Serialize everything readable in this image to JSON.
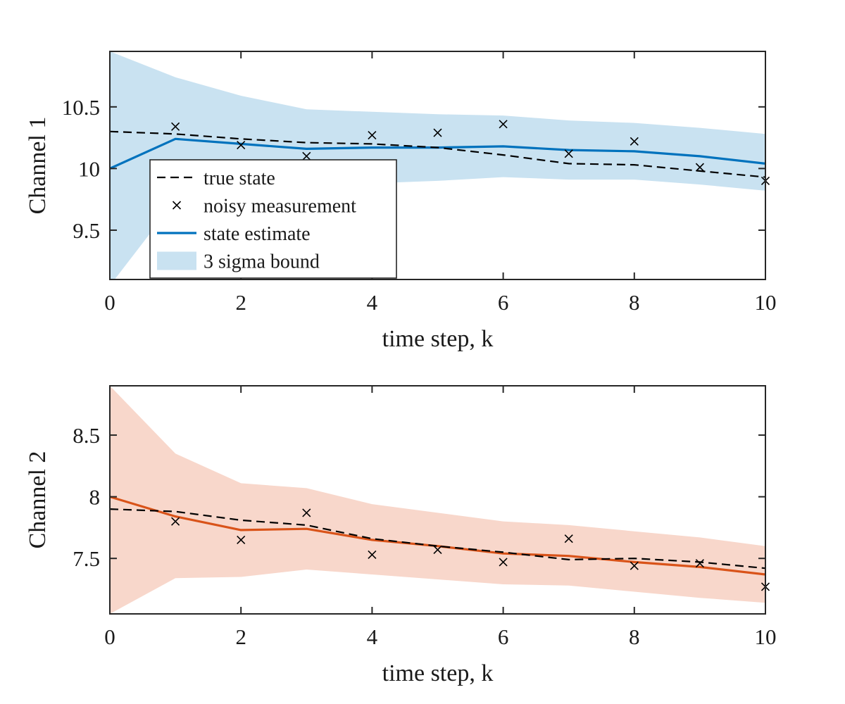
{
  "chart_data": [
    {
      "type": "line",
      "title": "",
      "xlabel": "time step, k",
      "ylabel": "Channel 1",
      "xlim": [
        0,
        10
      ],
      "ylim": [
        9.1,
        10.95
      ],
      "xticks": [
        0,
        2,
        4,
        6,
        8,
        10
      ],
      "xtick_labels": [
        "0",
        "2",
        "4",
        "6",
        "8",
        "10"
      ],
      "yticks": [
        9.5,
        10,
        10.5
      ],
      "ytick_labels": [
        "9.5",
        "10",
        "10.5"
      ],
      "grid": false,
      "legend_position": "lower-left",
      "x": [
        0,
        1,
        2,
        3,
        4,
        5,
        6,
        7,
        8,
        9,
        10
      ],
      "series": [
        {
          "name": "true state",
          "style": "dashed",
          "color": "#000000",
          "values": [
            10.3,
            10.28,
            10.24,
            10.21,
            10.2,
            10.17,
            10.11,
            10.04,
            10.03,
            9.98,
            9.93
          ]
        },
        {
          "name": "noisy measurement",
          "style": "marker-x",
          "color": "#000000",
          "values": [
            null,
            10.34,
            10.19,
            10.1,
            10.27,
            10.29,
            10.36,
            10.12,
            10.22,
            10.01,
            9.9
          ]
        },
        {
          "name": "state estimate",
          "style": "solid",
          "color": "#0072BD",
          "values": [
            10.0,
            10.24,
            10.2,
            10.16,
            10.17,
            10.17,
            10.18,
            10.15,
            10.14,
            10.1,
            10.04
          ]
        },
        {
          "name": "3 sigma bound",
          "style": "band",
          "color": "#0072BD",
          "upper": [
            10.95,
            10.74,
            10.59,
            10.48,
            10.46,
            10.44,
            10.43,
            10.39,
            10.37,
            10.33,
            10.28
          ],
          "lower": [
            9.05,
            9.74,
            9.82,
            9.84,
            9.88,
            9.9,
            9.93,
            9.91,
            9.91,
            9.87,
            9.82
          ]
        }
      ]
    },
    {
      "type": "line",
      "title": "",
      "xlabel": "time step, k",
      "ylabel": "Channel 2",
      "xlim": [
        0,
        10
      ],
      "ylim": [
        7.05,
        8.9
      ],
      "xticks": [
        0,
        2,
        4,
        6,
        8,
        10
      ],
      "xtick_labels": [
        "0",
        "2",
        "4",
        "6",
        "8",
        "10"
      ],
      "yticks": [
        7.5,
        8,
        8.5
      ],
      "ytick_labels": [
        "7.5",
        "8",
        "8.5"
      ],
      "grid": false,
      "x": [
        0,
        1,
        2,
        3,
        4,
        5,
        6,
        7,
        8,
        9,
        10
      ],
      "series": [
        {
          "name": "true state",
          "style": "dashed",
          "color": "#000000",
          "values": [
            7.9,
            7.88,
            7.81,
            7.77,
            7.66,
            7.6,
            7.55,
            7.49,
            7.5,
            7.47,
            7.42
          ]
        },
        {
          "name": "noisy measurement",
          "style": "marker-x",
          "color": "#000000",
          "values": [
            null,
            7.8,
            7.65,
            7.87,
            7.53,
            7.57,
            7.47,
            7.66,
            7.44,
            7.46,
            7.27
          ]
        },
        {
          "name": "state estimate",
          "style": "solid",
          "color": "#D95319",
          "values": [
            8.0,
            7.84,
            7.73,
            7.74,
            7.65,
            7.6,
            7.54,
            7.52,
            7.47,
            7.43,
            7.37
          ]
        },
        {
          "name": "3 sigma bound",
          "style": "band",
          "color": "#D95319",
          "upper": [
            8.9,
            8.35,
            8.11,
            8.07,
            7.94,
            7.87,
            7.8,
            7.77,
            7.72,
            7.67,
            7.6
          ],
          "lower": [
            7.05,
            7.34,
            7.35,
            7.41,
            7.37,
            7.33,
            7.29,
            7.28,
            7.23,
            7.18,
            7.14
          ]
        }
      ]
    }
  ]
}
